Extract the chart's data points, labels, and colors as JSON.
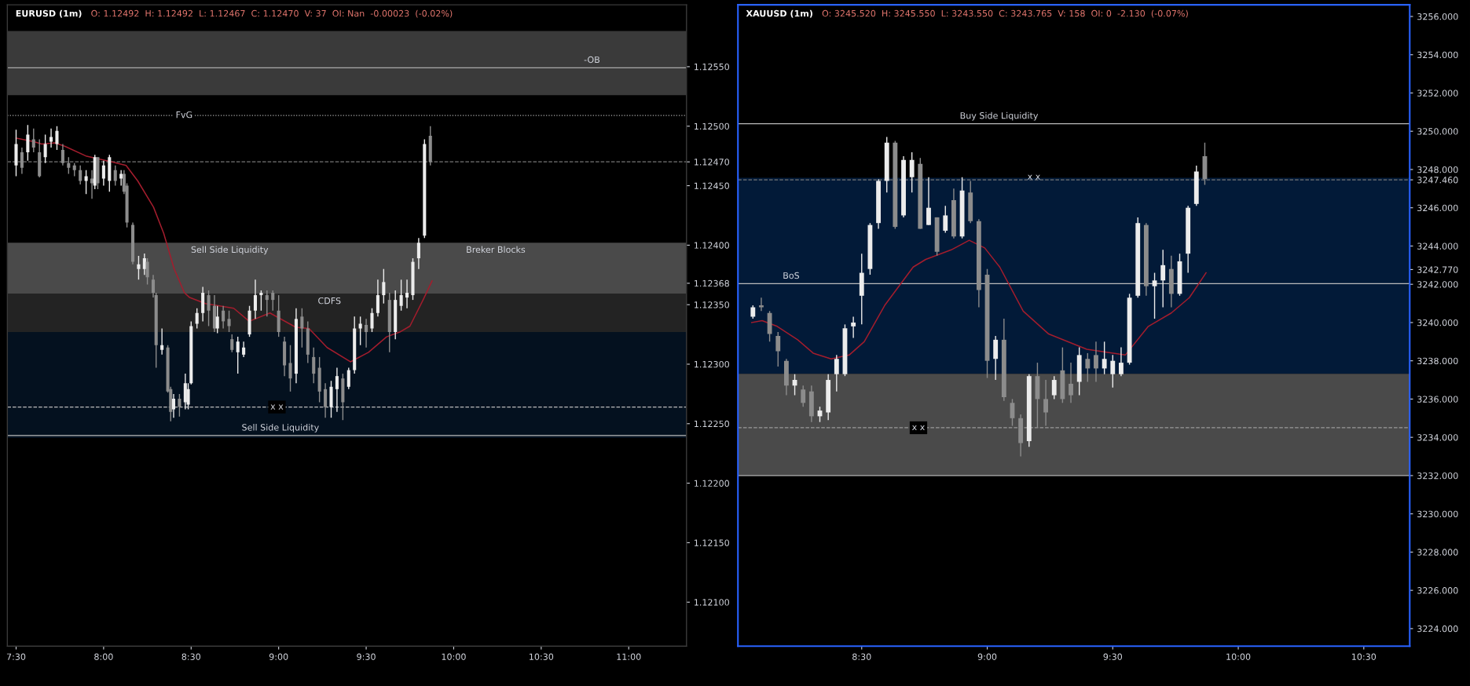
{
  "chart_data": [
    {
      "type": "candlestick",
      "title": "EURUSD (1m)",
      "subtitle": "O: 1.12492  H: 1.12492  L: 1.12467  C: 1.12470  V: 37  OI: Nan  -0.00023  (-0.02%)",
      "x": [
        7.5,
        7.5333,
        7.5667,
        7.6,
        7.6333,
        7.6667,
        7.7,
        7.7333,
        7.7667,
        7.8,
        7.8333,
        7.8667,
        7.9,
        7.9333,
        7.95,
        7.9667,
        8.0,
        8.0333,
        8.0667,
        8.1,
        8.1167,
        8.1333,
        8.1667,
        8.2,
        8.2333,
        8.25,
        8.2833,
        8.3,
        8.3333,
        8.3667,
        8.3833,
        8.4,
        8.4333,
        8.4667,
        8.4833,
        8.5,
        8.5333,
        8.5667,
        8.6,
        8.6333,
        8.65,
        8.6833,
        8.7167,
        8.7333,
        8.7667,
        8.8,
        8.8333,
        8.8667,
        8.9,
        8.9333,
        8.9667,
        9.0,
        9.0333,
        9.0667,
        9.1,
        9.1333,
        9.1667,
        9.2,
        9.2333,
        9.2667,
        9.3,
        9.3333,
        9.3667,
        9.4,
        9.4333,
        9.4667,
        9.5,
        9.5333,
        9.5667,
        9.6,
        9.6333,
        9.6667,
        9.7,
        9.7333,
        9.7667,
        9.8,
        9.8333,
        9.8667
      ],
      "ohlc": [
        [
          1.12467,
          1.12497,
          1.12458,
          1.12485
        ],
        [
          1.12478,
          1.12482,
          1.1246,
          1.12465
        ],
        [
          1.12478,
          1.12501,
          1.12471,
          1.12493
        ],
        [
          1.12489,
          1.12498,
          1.12478,
          1.12482
        ],
        [
          1.12478,
          1.12489,
          1.12457,
          1.12458
        ],
        [
          1.12474,
          1.12493,
          1.12469,
          1.12485
        ],
        [
          1.12487,
          1.12498,
          1.12482,
          1.12491
        ],
        [
          1.12485,
          1.125,
          1.1248,
          1.12496
        ],
        [
          1.1248,
          1.12485,
          1.12467,
          1.12469
        ],
        [
          1.12469,
          1.12474,
          1.1246,
          1.12465
        ],
        [
          1.12467,
          1.12469,
          1.12458,
          1.12463
        ],
        [
          1.12463,
          1.12467,
          1.12451,
          1.12454
        ],
        [
          1.12454,
          1.12463,
          1.12443,
          1.12458
        ],
        [
          1.12456,
          1.12463,
          1.12439,
          1.12452
        ],
        [
          1.1245,
          1.12476,
          1.12447,
          1.12474
        ],
        [
          1.12474,
          1.12474,
          1.12447,
          1.12452
        ],
        [
          1.12456,
          1.12471,
          1.1245,
          1.12467
        ],
        [
          1.12454,
          1.12476,
          1.12445,
          1.12474
        ],
        [
          1.12463,
          1.12467,
          1.1245,
          1.12454
        ],
        [
          1.12456,
          1.12463,
          1.1245,
          1.1246
        ],
        [
          1.1246,
          1.12463,
          1.12443,
          1.12445
        ],
        [
          1.1245,
          1.12452,
          1.12415,
          1.12419
        ],
        [
          1.12417,
          1.12419,
          1.12384,
          1.12386
        ],
        [
          1.1238,
          1.12391,
          1.12371,
          1.12384
        ],
        [
          1.1238,
          1.12393,
          1.12375,
          1.12389
        ],
        [
          1.12386,
          1.12389,
          1.12367,
          1.12373
        ],
        [
          1.12371,
          1.12375,
          1.12356,
          1.1236
        ],
        [
          1.12358,
          1.1236,
          1.12297,
          1.12316
        ],
        [
          1.12312,
          1.1233,
          1.12308,
          1.12316
        ],
        [
          1.12314,
          1.12316,
          1.12276,
          1.12277
        ],
        [
          1.12279,
          1.12281,
          1.12252,
          1.1226
        ],
        [
          1.12262,
          1.12275,
          1.12255,
          1.12271
        ],
        [
          1.12271,
          1.12275,
          1.12256,
          1.12264
        ],
        [
          1.12268,
          1.12292,
          1.12262,
          1.12284
        ],
        [
          1.12266,
          1.12284,
          1.12262,
          1.12279
        ],
        [
          1.12284,
          1.12336,
          1.12283,
          1.12332
        ],
        [
          1.12334,
          1.12347,
          1.1233,
          1.12343
        ],
        [
          1.12343,
          1.12365,
          1.12336,
          1.1236
        ],
        [
          1.12358,
          1.12362,
          1.12332,
          1.12345
        ],
        [
          1.12349,
          1.12358,
          1.12327,
          1.1233
        ],
        [
          1.1233,
          1.12349,
          1.12326,
          1.1234
        ],
        [
          1.12345,
          1.12349,
          1.1233,
          1.12336
        ],
        [
          1.12338,
          1.12345,
          1.12327,
          1.12332
        ],
        [
          1.12321,
          1.12325,
          1.1231,
          1.12312
        ],
        [
          1.1231,
          1.12323,
          1.12292,
          1.12319
        ],
        [
          1.12308,
          1.12319,
          1.12306,
          1.12314
        ],
        [
          1.12325,
          1.12349,
          1.12323,
          1.12345
        ],
        [
          1.12345,
          1.12371,
          1.12338,
          1.12358
        ],
        [
          1.12358,
          1.12362,
          1.12345,
          1.1236
        ],
        [
          1.12358,
          1.12362,
          1.1234,
          1.12354
        ],
        [
          1.1236,
          1.12362,
          1.12345,
          1.12354
        ],
        [
          1.12345,
          1.12358,
          1.12323,
          1.12327
        ],
        [
          1.12319,
          1.12323,
          1.1229,
          1.12299
        ],
        [
          1.12301,
          1.12316,
          1.12277,
          1.12288
        ],
        [
          1.12292,
          1.12347,
          1.12284,
          1.12338
        ],
        [
          1.1234,
          1.12347,
          1.12314,
          1.1233
        ],
        [
          1.1233,
          1.12336,
          1.12301,
          1.12308
        ],
        [
          1.12306,
          1.12314,
          1.12284,
          1.12292
        ],
        [
          1.12297,
          1.12306,
          1.12268,
          1.12277
        ],
        [
          1.12279,
          1.12284,
          1.12255,
          1.12264
        ],
        [
          1.12264,
          1.12286,
          1.12255,
          1.12281
        ],
        [
          1.12279,
          1.12297,
          1.1226,
          1.1229
        ],
        [
          1.12288,
          1.12292,
          1.12253,
          1.12268
        ],
        [
          1.12281,
          1.12297,
          1.12279,
          1.12295
        ],
        [
          1.12295,
          1.1234,
          1.12292,
          1.1233
        ],
        [
          1.1233,
          1.1234,
          1.12316,
          1.12334
        ],
        [
          1.12333,
          1.12338,
          1.12314,
          1.12327
        ],
        [
          1.1233,
          1.12347,
          1.12327,
          1.12343
        ],
        [
          1.12343,
          1.12371,
          1.1234,
          1.12358
        ],
        [
          1.12358,
          1.1238,
          1.12351,
          1.12369
        ],
        [
          1.12354,
          1.1236,
          1.1231,
          1.12327
        ],
        [
          1.12327,
          1.12362,
          1.12321,
          1.12354
        ],
        [
          1.12349,
          1.12371,
          1.12345,
          1.12358
        ],
        [
          1.12356,
          1.12371,
          1.12347,
          1.1236
        ],
        [
          1.12358,
          1.12389,
          1.12354,
          1.12386
        ],
        [
          1.12389,
          1.12406,
          1.1238,
          1.12402
        ],
        [
          1.12408,
          1.12489,
          1.12406,
          1.12485
        ],
        [
          1.12492,
          1.125,
          1.12467,
          1.1247
        ]
      ],
      "series": [
        {
          "type": "line",
          "color": "#a31d2d",
          "x": [
            7.5,
            7.6017,
            7.6467,
            7.7217,
            7.78,
            7.8983,
            8.0467,
            8.1283,
            8.195,
            8.285,
            8.3433,
            8.4033,
            8.4617,
            8.4917,
            8.5817,
            8.7433,
            8.8317,
            8.95,
            9.0983,
            9.1733,
            9.2767,
            9.41,
            9.5133,
            9.6167,
            9.6917,
            9.75,
            9.825,
            9.8767
          ],
          "values": [
            1.1249,
            1.12487,
            1.12485,
            1.12486,
            1.12483,
            1.12475,
            1.1247,
            1.12467,
            1.12454,
            1.12432,
            1.1241,
            1.1238,
            1.1236,
            1.12356,
            1.12351,
            1.12347,
            1.12336,
            1.12343,
            1.12331,
            1.1233,
            1.12314,
            1.12302,
            1.1231,
            1.12323,
            1.12327,
            1.12332,
            1.12354,
            1.1237
          ]
        }
      ],
      "xlim": [
        7.45,
        11.33
      ],
      "xticks": [
        {
          "value": 7.5,
          "label": "7:30"
        },
        {
          "value": 8,
          "label": "8:00"
        },
        {
          "value": 8.5,
          "label": "8:30"
        },
        {
          "value": 9,
          "label": "9:00"
        },
        {
          "value": 9.5,
          "label": "9:30"
        },
        {
          "value": 10,
          "label": "10:00"
        },
        {
          "value": 10.5,
          "label": "10:30"
        },
        {
          "value": 11,
          "label": "11:00"
        }
      ],
      "ylim": [
        1.12063,
        1.12602
      ],
      "yticks": [
        {
          "value": 1.121,
          "label": "1.12100"
        },
        {
          "value": 1.1215,
          "label": "1.12150"
        },
        {
          "value": 1.122,
          "label": "1.12200"
        },
        {
          "value": 1.1225,
          "label": "1.12250"
        },
        {
          "value": 1.123,
          "label": "1.12300"
        },
        {
          "value": 1.1235,
          "label": "1.12350"
        },
        {
          "value": 1.12368,
          "label": "1.12368"
        },
        {
          "value": 1.124,
          "label": "1.12400"
        },
        {
          "value": 1.1245,
          "label": "1.12450"
        },
        {
          "value": 1.1247,
          "label": "1.12470"
        },
        {
          "value": 1.125,
          "label": "1.12500"
        },
        {
          "value": 1.1255,
          "label": "1.12550"
        }
      ],
      "bands": [
        {
          "axis": "y",
          "from": 1.12526,
          "to": 1.1258,
          "color": "#3a3a3a"
        },
        {
          "axis": "y",
          "from": 1.12359,
          "to": 1.12402,
          "color": "#4a4a4a"
        },
        {
          "axis": "y",
          "from": 1.12327,
          "to": 1.12359,
          "color": "#232323"
        },
        {
          "axis": "y",
          "from": 1.12238,
          "to": 1.12327,
          "color": "#04111f"
        }
      ],
      "ref_lines": [
        {
          "axis": "y",
          "value": 1.12549,
          "color": "#aaaaaa",
          "line_style": "solid"
        },
        {
          "axis": "y",
          "value": 1.12509,
          "color": "#aaaaaa",
          "line_style": "dotted"
        },
        {
          "axis": "y",
          "value": 1.1247,
          "color": "#777777",
          "line_style": "dashed"
        },
        {
          "axis": "y",
          "value": 1.12264,
          "color": "#bbbbbb",
          "line_style": "dashed"
        },
        {
          "axis": "y",
          "value": 1.1224,
          "color": "#bbbbbb",
          "line_style": "solid"
        }
      ],
      "annotations": [
        {
          "text": "-OB",
          "x": 10.79,
          "y": 1.12549
        },
        {
          "text": "FvG",
          "x": 8.46,
          "y": 1.12509
        },
        {
          "text": "Sell Side Liquidity",
          "x": 8.72,
          "y": 1.12402
        },
        {
          "text": "Breker Blocks",
          "x": 10.24,
          "y": 1.12402
        },
        {
          "text": "CDFS",
          "x": 9.29,
          "y": 1.12359
        },
        {
          "text": "x x",
          "x": 8.99,
          "y": 1.12264
        },
        {
          "text": "Sell Side Liquidity",
          "x": 9.01,
          "y": 1.1224
        }
      ],
      "grid": false
    },
    {
      "type": "candlestick",
      "title": "XAUUSD (1m)",
      "subtitle": "O: 3245.520  H: 3245.550  L: 3243.550  C: 3243.765  V: 158  OI: 0  -2.130  (-0.07%)",
      "x": [
        8.0667,
        8.1,
        8.1333,
        8.1667,
        8.2,
        8.2333,
        8.2667,
        8.3,
        8.3333,
        8.3667,
        8.4,
        8.4333,
        8.4667,
        8.5,
        8.5333,
        8.5667,
        8.6,
        8.6333,
        8.6667,
        8.7,
        8.7333,
        8.7667,
        8.8,
        8.8333,
        8.8667,
        8.9,
        8.9333,
        8.9667,
        9.0,
        9.0333,
        9.0667,
        9.1,
        9.1333,
        9.1667,
        9.2,
        9.2333,
        9.2667,
        9.3,
        9.3333,
        9.3667,
        9.4,
        9.4333,
        9.4667,
        9.5,
        9.5333,
        9.5667,
        9.6,
        9.6333,
        9.6667,
        9.7,
        9.7333,
        9.7667,
        9.8,
        9.8333,
        9.8667
      ],
      "ohlc": [
        [
          3240.3,
          3240.9,
          3240.2,
          3240.8
        ],
        [
          3240.9,
          3241.3,
          3240.6,
          3240.8
        ],
        [
          3240.5,
          3240.6,
          3239.0,
          3239.4
        ],
        [
          3239.3,
          3239.5,
          3237.7,
          3238.5
        ],
        [
          3238.0,
          3238.1,
          3236.2,
          3236.7
        ],
        [
          3236.7,
          3237.3,
          3236.2,
          3237.0
        ],
        [
          3236.5,
          3236.7,
          3235.6,
          3235.8
        ],
        [
          3236.4,
          3236.7,
          3234.8,
          3235.1
        ],
        [
          3235.1,
          3235.6,
          3234.8,
          3235.4
        ],
        [
          3235.3,
          3237.3,
          3234.9,
          3237.0
        ],
        [
          3237.3,
          3238.3,
          3236.4,
          3238.1
        ],
        [
          3237.3,
          3239.9,
          3237.2,
          3239.7
        ],
        [
          3239.8,
          3240.3,
          3239.2,
          3240.0
        ],
        [
          3241.4,
          3243.6,
          3239.9,
          3242.6
        ],
        [
          3242.8,
          3245.2,
          3242.5,
          3245.1
        ],
        [
          3245.2,
          3247.5,
          3244.9,
          3247.4
        ],
        [
          3247.4,
          3249.7,
          3246.8,
          3249.4
        ],
        [
          3249.4,
          3249.5,
          3244.9,
          3245.0
        ],
        [
          3245.6,
          3248.7,
          3245.5,
          3248.5
        ],
        [
          3247.6,
          3248.9,
          3246.8,
          3248.5
        ],
        [
          3248.3,
          3248.6,
          3244.9,
          3244.9
        ],
        [
          3245.1,
          3247.6,
          3245.1,
          3246.0
        ],
        [
          3245.5,
          3245.5,
          3243.5,
          3243.7
        ],
        [
          3244.8,
          3246.1,
          3244.7,
          3245.6
        ],
        [
          3246.4,
          3247.0,
          3244.4,
          3244.5
        ],
        [
          3244.5,
          3247.6,
          3244.4,
          3246.9
        ],
        [
          3246.8,
          3247.4,
          3245.2,
          3245.3
        ],
        [
          3245.3,
          3245.4,
          3240.8,
          3241.7
        ],
        [
          3242.5,
          3242.8,
          3237.1,
          3238.0
        ],
        [
          3238.1,
          3239.3,
          3237.0,
          3239.1
        ],
        [
          3239.1,
          3240.2,
          3235.9,
          3236.1
        ],
        [
          3235.8,
          3236.0,
          3234.6,
          3235.0
        ],
        [
          3235.0,
          3235.2,
          3233.0,
          3233.7
        ],
        [
          3233.8,
          3237.3,
          3233.5,
          3237.2
        ],
        [
          3237.2,
          3237.9,
          3234.5,
          3236.0
        ],
        [
          3236.0,
          3237.0,
          3234.6,
          3235.3
        ],
        [
          3236.2,
          3237.2,
          3236.0,
          3237.0
        ],
        [
          3237.5,
          3238.7,
          3235.8,
          3236.0
        ],
        [
          3236.8,
          3237.9,
          3235.8,
          3236.2
        ],
        [
          3236.9,
          3238.7,
          3236.2,
          3238.3
        ],
        [
          3238.1,
          3238.4,
          3236.9,
          3237.6
        ],
        [
          3238.3,
          3239.0,
          3236.9,
          3237.6
        ],
        [
          3237.6,
          3239.0,
          3237.3,
          3238.1
        ],
        [
          3237.3,
          3238.3,
          3236.6,
          3238.0
        ],
        [
          3237.3,
          3238.7,
          3237.2,
          3237.9
        ],
        [
          3237.9,
          3241.5,
          3237.8,
          3241.3
        ],
        [
          3241.4,
          3245.5,
          3241.3,
          3245.2
        ],
        [
          3245.1,
          3245.2,
          3241.4,
          3241.9
        ],
        [
          3241.9,
          3242.6,
          3240.2,
          3242.2
        ],
        [
          3242.2,
          3243.8,
          3240.8,
          3243.0
        ],
        [
          3242.8,
          3243.5,
          3240.8,
          3241.5
        ],
        [
          3241.5,
          3243.6,
          3241.4,
          3243.2
        ],
        [
          3243.6,
          3246.1,
          3242.6,
          3246.0
        ],
        [
          3246.2,
          3248.2,
          3246.1,
          3247.9
        ],
        [
          3248.7,
          3249.4,
          3247.2,
          3247.5
        ]
      ],
      "series": [
        {
          "type": "line",
          "color": "#a31d2d",
          "x": [
            8.0617,
            8.1033,
            8.1633,
            8.245,
            8.3067,
            8.3783,
            8.45,
            8.51,
            8.5917,
            8.705,
            8.755,
            8.8567,
            8.9283,
            8.99,
            9.05,
            9.1433,
            9.245,
            9.3967,
            9.55,
            9.6417,
            9.7333,
            9.805,
            9.8717
          ],
          "values": [
            3240.0,
            3240.1,
            3239.8,
            3239.1,
            3238.4,
            3238.1,
            3238.3,
            3239.0,
            3240.9,
            3242.9,
            3243.3,
            3243.8,
            3244.3,
            3243.9,
            3242.9,
            3240.6,
            3239.4,
            3238.6,
            3238.3,
            3239.8,
            3240.5,
            3241.3,
            3242.6
          ]
        }
      ],
      "xlim": [
        8.007,
        10.683
      ],
      "xticks": [
        {
          "value": 8.5,
          "label": "8:30"
        },
        {
          "value": 9,
          "label": "9:00"
        },
        {
          "value": 9.5,
          "label": "9:30"
        },
        {
          "value": 10,
          "label": "10:00"
        },
        {
          "value": 10.5,
          "label": "10:30"
        }
      ],
      "ylim": [
        3223.08,
        3256.61
      ],
      "yticks": [
        {
          "value": 3224,
          "label": "3224.000"
        },
        {
          "value": 3226,
          "label": "3226.000"
        },
        {
          "value": 3228,
          "label": "3228.000"
        },
        {
          "value": 3230,
          "label": "3230.000"
        },
        {
          "value": 3232,
          "label": "3232.000"
        },
        {
          "value": 3234,
          "label": "3234.000"
        },
        {
          "value": 3236,
          "label": "3236.000"
        },
        {
          "value": 3238,
          "label": "3238.000"
        },
        {
          "value": 3240,
          "label": "3240.000"
        },
        {
          "value": 3242,
          "label": "3242.000"
        },
        {
          "value": 3242.77,
          "label": "3242.770"
        },
        {
          "value": 3244,
          "label": "3244.000"
        },
        {
          "value": 3246,
          "label": "3246.000"
        },
        {
          "value": 3247.46,
          "label": "3247.460"
        },
        {
          "value": 3248,
          "label": "3248.000"
        },
        {
          "value": 3250,
          "label": "3250.000"
        },
        {
          "value": 3252,
          "label": "3252.000"
        },
        {
          "value": 3254,
          "label": "3254.000"
        },
        {
          "value": 3256,
          "label": "3256.000"
        }
      ],
      "bands": [
        {
          "axis": "y",
          "from": 3237.32,
          "to": 3247.57,
          "color": "#021a38"
        },
        {
          "axis": "y",
          "from": 3232.02,
          "to": 3237.32,
          "color": "#4a4a4a"
        }
      ],
      "ref_lines": [
        {
          "axis": "y",
          "value": 3250.39,
          "color": "#bbbbbb",
          "line_style": "solid"
        },
        {
          "axis": "y",
          "value": 3247.46,
          "color": "#777777",
          "line_style": "dashed"
        },
        {
          "axis": "y",
          "value": 3242.03,
          "color": "#bbbbbb",
          "line_style": "solid"
        },
        {
          "axis": "y",
          "value": 3234.5,
          "color": "#999999",
          "line_style": "dashed"
        },
        {
          "axis": "y",
          "value": 3232.0,
          "color": "#bbbbbb",
          "line_style": "solid"
        }
      ],
      "annotations": [
        {
          "text": "Buy Side Liquidity",
          "x": 9.047,
          "y": 3250.39
        },
        {
          "text": "BoS",
          "x": 8.219,
          "y": 3242.03
        },
        {
          "text": "x x",
          "x": 8.726,
          "y": 3234.5
        },
        {
          "text": "x x",
          "x": 9.186,
          "y": 3247.6
        }
      ],
      "grid": false
    }
  ]
}
